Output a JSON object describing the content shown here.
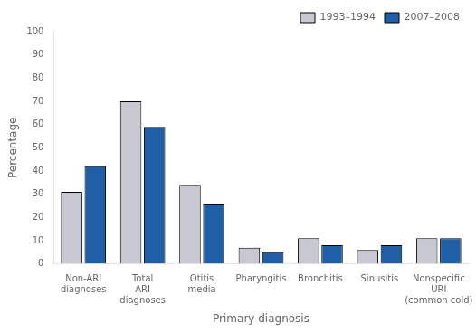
{
  "chart_data": {
    "type": "bar",
    "categories": [
      "Non-ARI\ndiagnoses",
      "Total\nARI\ndiagnoses",
      "Otitis\nmedia",
      "Pharyngitis",
      "Bronchitis",
      "Sinusitis",
      "Nonspecific\nURI\n(common cold)"
    ],
    "series": [
      {
        "name": "1993–1994",
        "color": "#c8c8d2",
        "values": [
          31,
          70,
          34,
          7,
          11,
          6,
          11
        ]
      },
      {
        "name": "2007–2008",
        "color": "#1f5fa6",
        "values": [
          42,
          59,
          26,
          5,
          8,
          8,
          11
        ]
      }
    ],
    "xlabel": "Primary diagnosis",
    "ylabel": "Percentage",
    "ylim": [
      0,
      100
    ],
    "yticks": [
      0,
      10,
      20,
      30,
      40,
      50,
      60,
      70,
      80,
      90,
      100
    ],
    "grid": false,
    "legend": "upper right"
  }
}
